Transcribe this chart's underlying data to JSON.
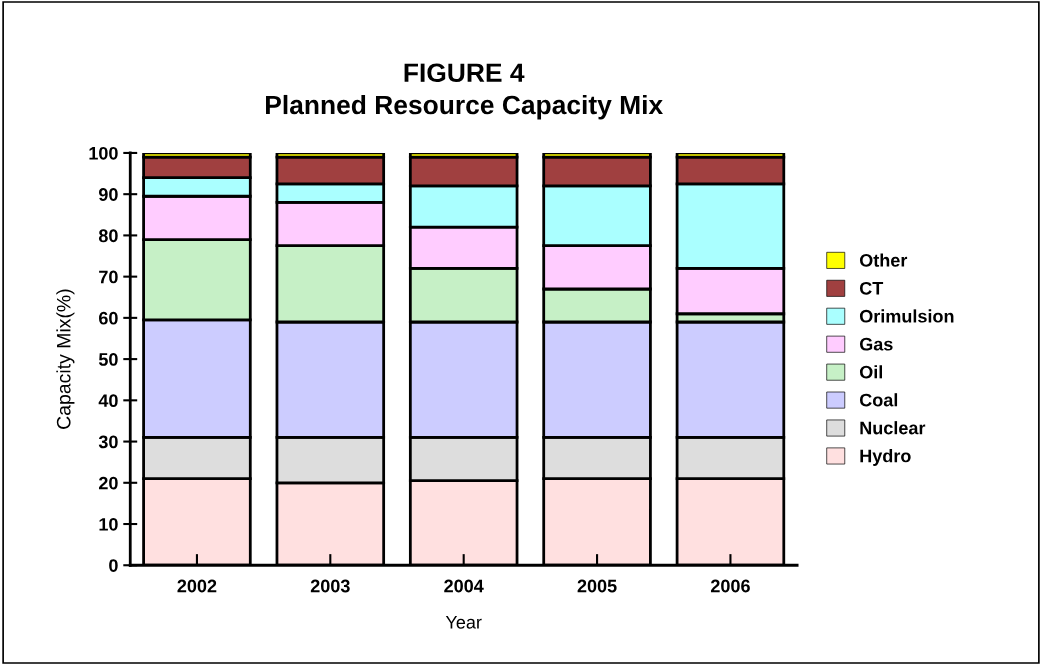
{
  "chart_data": {
    "type": "bar",
    "title": "FIGURE 4\nPlanned Resource Capacity Mix",
    "xlabel": "Year",
    "ylabel": "Capacity Mix(%)",
    "categories": [
      "2002",
      "2003",
      "2004",
      "2005",
      "2006"
    ],
    "stacked": true,
    "series": [
      {
        "name": "Hydro",
        "color": "#ffe0e0",
        "values": [
          21,
          20,
          20.5,
          21,
          21
        ]
      },
      {
        "name": "Nuclear",
        "color": "#dddddd",
        "values": [
          10,
          11,
          10.5,
          10,
          10
        ]
      },
      {
        "name": "Coal",
        "color": "#ccccff",
        "values": [
          28.5,
          28,
          28,
          28,
          28
        ]
      },
      {
        "name": "Oil",
        "color": "#c6f0c6",
        "values": [
          19.5,
          18.5,
          13,
          8,
          2
        ]
      },
      {
        "name": "Gas",
        "color": "#ffccff",
        "values": [
          10.5,
          10.5,
          10,
          10.5,
          11
        ]
      },
      {
        "name": "Orimulsion",
        "color": "#aaffff",
        "values": [
          4.5,
          4.5,
          10,
          14.5,
          20.5
        ]
      },
      {
        "name": "CT",
        "color": "#a04040",
        "values": [
          5,
          6.5,
          7,
          7,
          6.5
        ]
      },
      {
        "name": "Other",
        "color": "#ffff00",
        "values": [
          1,
          1,
          1,
          1,
          1
        ]
      }
    ],
    "ylim": [
      0,
      100
    ],
    "yticks": [
      0,
      10,
      20,
      30,
      40,
      50,
      60,
      70,
      80,
      90,
      100
    ],
    "grid": false,
    "legend": "right"
  }
}
